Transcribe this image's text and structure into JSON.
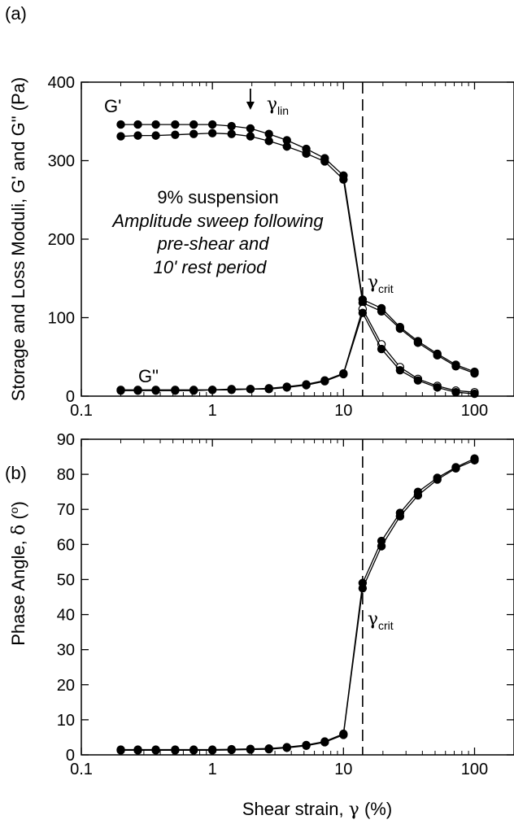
{
  "figure": {
    "xlabel_prefix": "Shear strain, ",
    "xlabel_symbol": "γ",
    "xlabel_suffix": " (%)"
  },
  "chart_data": [
    {
      "type": "line",
      "panel_label": "(a)",
      "ylabel": "Storage and Loss Moduli, G' and G\" (Pa)",
      "x_scale": "log",
      "xlim": [
        0.1,
        200
      ],
      "ylim": [
        0,
        400
      ],
      "x_ticks": [
        0.1,
        1,
        10,
        100
      ],
      "x_tick_labels": [
        "0.1",
        "1",
        "10",
        "100"
      ],
      "y_ticks": [
        0,
        100,
        200,
        300,
        400
      ],
      "y_tick_labels": [
        "0",
        "100",
        "200",
        "300",
        "400"
      ],
      "vline_x": 14,
      "series": [
        {
          "name": "G'",
          "marker": "filled",
          "x": [
            0.2,
            0.27,
            0.37,
            0.52,
            0.72,
            1.0,
            1.4,
            1.95,
            2.7,
            3.7,
            5.2,
            7.2,
            10,
            14,
            19.5,
            27,
            37,
            52,
            72,
            100
          ],
          "values": [
            346,
            346,
            346,
            346,
            346,
            346,
            344,
            341,
            334,
            326,
            315,
            303,
            281,
            123,
            112,
            88,
            70,
            54,
            40,
            31
          ]
        },
        {
          "marker": "filled",
          "x": [
            0.2,
            0.27,
            0.37,
            0.52,
            0.72,
            1.0,
            1.4,
            1.95,
            2.7,
            3.7,
            5.2,
            7.2,
            10,
            14,
            19.5,
            27,
            37,
            52,
            72,
            100
          ],
          "values": [
            331,
            332,
            332,
            333,
            334,
            335,
            334,
            331,
            325,
            318,
            309,
            299,
            276,
            119,
            108,
            86,
            68,
            52,
            38,
            29
          ]
        },
        {
          "name": "G\"",
          "marker": "open",
          "x": [
            0.2,
            0.27,
            0.37,
            0.52,
            0.72,
            1.0,
            1.4,
            1.95,
            2.7,
            3.7,
            5.2,
            7.2,
            10,
            14,
            19.5,
            27,
            37,
            52,
            72,
            100
          ],
          "values": [
            8,
            8,
            8,
            8,
            8,
            8,
            9,
            9,
            10,
            12,
            15,
            20,
            29,
            111,
            66,
            37,
            22,
            13,
            7,
            5
          ]
        },
        {
          "marker": "filled",
          "x": [
            0.2,
            0.27,
            0.37,
            0.52,
            0.72,
            1.0,
            1.4,
            1.95,
            2.7,
            3.7,
            5.2,
            7.2,
            10,
            14,
            19.5,
            27,
            37,
            52,
            72,
            100
          ],
          "values": [
            7,
            7,
            7,
            7,
            7,
            8,
            8,
            9,
            9,
            11,
            14,
            19,
            28,
            106,
            60,
            33,
            20,
            11,
            5,
            3
          ]
        }
      ],
      "annotations": {
        "gprime": "G'",
        "gdoubleprime": "G\"",
        "gamma_symbol": "γ",
        "lin_sub": "lin",
        "crit_sub": "crit",
        "arrow_x": 1.95,
        "text_line1": "9% suspension",
        "text_line2": "Amplitude sweep following",
        "text_line3": "pre-shear  and",
        "text_line4": "10' rest period"
      }
    },
    {
      "type": "line",
      "panel_label": "(b)",
      "ylabel_prefix": "Phase Angle, ",
      "ylabel_symbol": "δ",
      "ylabel_unit_open": " (",
      "ylabel_unit_sup": "o",
      "ylabel_unit_close": ")",
      "x_scale": "log",
      "xlim": [
        0.1,
        200
      ],
      "ylim": [
        0,
        90
      ],
      "x_ticks": [
        0.1,
        1,
        10,
        100
      ],
      "x_tick_labels": [
        "0.1",
        "1",
        "10",
        "100"
      ],
      "y_ticks": [
        0,
        10,
        20,
        30,
        40,
        50,
        60,
        70,
        80,
        90
      ],
      "y_tick_labels": [
        "0",
        "10",
        "20",
        "30",
        "40",
        "50",
        "60",
        "70",
        "80",
        "90"
      ],
      "vline_x": 14,
      "series": [
        {
          "marker": "filled",
          "x": [
            0.2,
            0.27,
            0.37,
            0.52,
            0.72,
            1.0,
            1.4,
            1.95,
            2.7,
            3.7,
            5.2,
            7.2,
            10,
            14,
            19.5,
            27,
            37,
            52,
            72,
            100
          ],
          "values": [
            1.5,
            1.5,
            1.5,
            1.5,
            1.5,
            1.5,
            1.6,
            1.7,
            1.8,
            2.2,
            2.8,
            3.8,
            6.0,
            49,
            61,
            69,
            75,
            79,
            82,
            84.5
          ]
        },
        {
          "marker": "filled",
          "x": [
            0.2,
            0.27,
            0.37,
            0.52,
            0.72,
            1.0,
            1.4,
            1.95,
            2.7,
            3.7,
            5.2,
            7.2,
            10,
            14,
            19.5,
            27,
            37,
            52,
            72,
            100
          ],
          "values": [
            1.3,
            1.3,
            1.3,
            1.3,
            1.3,
            1.3,
            1.4,
            1.5,
            1.6,
            2.0,
            2.6,
            3.6,
            5.7,
            47.5,
            59.5,
            68,
            74,
            78.5,
            81.7,
            84
          ]
        }
      ],
      "annotations": {
        "gamma_symbol": "γ",
        "crit_sub": "crit"
      }
    }
  ]
}
